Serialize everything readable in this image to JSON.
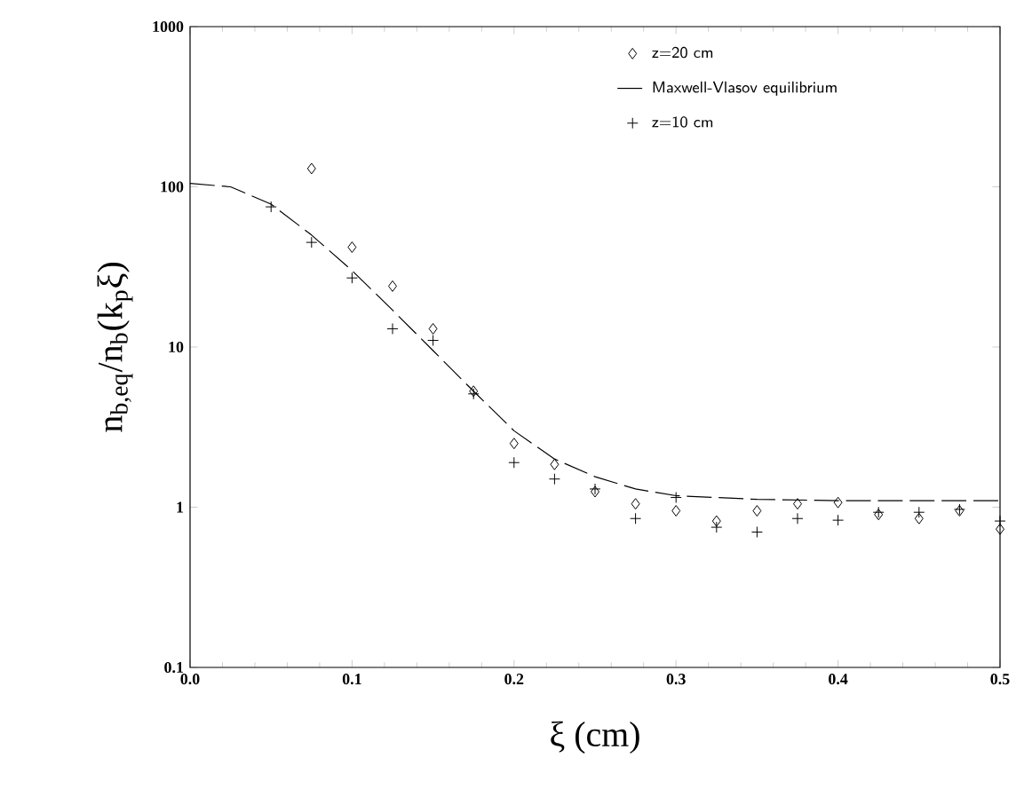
{
  "chart_data": {
    "type": "scatter",
    "xlabel": "ξ (cm)",
    "ylabel": "n$_{b,eq}$/n$_{b}$(k$_{p}$ξ)",
    "log": "y",
    "grid": false,
    "legend": "top right",
    "xlim": [
      0,
      0.5
    ],
    "ylim": [
      0.1,
      1000
    ],
    "xticks": [
      {
        "value": 0,
        "label": "0.0"
      },
      {
        "value": 0.1,
        "label": "0.1"
      },
      {
        "value": 0.2,
        "label": "0.2"
      },
      {
        "value": 0.3,
        "label": "0.3"
      },
      {
        "value": 0.4,
        "label": "0.4"
      },
      {
        "value": 0.5,
        "label": "0.5"
      }
    ],
    "yticks": [
      0.1,
      1,
      10,
      100,
      1000
    ],
    "series": [
      {
        "name": "z=20 cm",
        "marker": "diamond",
        "color": "#000000",
        "x": [
          0.075,
          0.1,
          0.125,
          0.15,
          0.175,
          0.2,
          0.225,
          0.25,
          0.275,
          0.3,
          0.325,
          0.35,
          0.375,
          0.4,
          0.425,
          0.45,
          0.475,
          0.5
        ],
        "values": [
          130,
          42,
          24,
          13,
          5.3,
          2.5,
          1.85,
          1.25,
          1.05,
          0.95,
          0.82,
          0.95,
          1.05,
          1.07,
          0.9,
          0.85,
          0.95,
          0.73
        ]
      },
      {
        "name": "Maxwell-Vlasov equilibrium",
        "type": "line",
        "marker": "none",
        "line_style": "dashed",
        "color": "#000000",
        "x": [
          0,
          0.025,
          0.05,
          0.075,
          0.1,
          0.125,
          0.15,
          0.175,
          0.2,
          0.225,
          0.25,
          0.275,
          0.3,
          0.35,
          0.4,
          0.45,
          0.5
        ],
        "values": [
          105,
          100,
          78,
          50,
          30,
          17,
          9.5,
          5.3,
          3,
          2,
          1.55,
          1.3,
          1.18,
          1.12,
          1.1,
          1.1,
          1.1
        ]
      },
      {
        "name": "z=10 cm",
        "marker": "cross",
        "color": "#000000",
        "x": [
          0.05,
          0.075,
          0.1,
          0.125,
          0.15,
          0.175,
          0.2,
          0.225,
          0.25,
          0.275,
          0.3,
          0.325,
          0.35,
          0.375,
          0.4,
          0.425,
          0.45,
          0.475,
          0.5
        ],
        "values": [
          75,
          45,
          27,
          13,
          11,
          5.1,
          1.9,
          1.5,
          1.3,
          0.85,
          1.15,
          0.75,
          0.7,
          0.85,
          0.83,
          0.93,
          0.93,
          0.97,
          0.82
        ]
      }
    ]
  }
}
